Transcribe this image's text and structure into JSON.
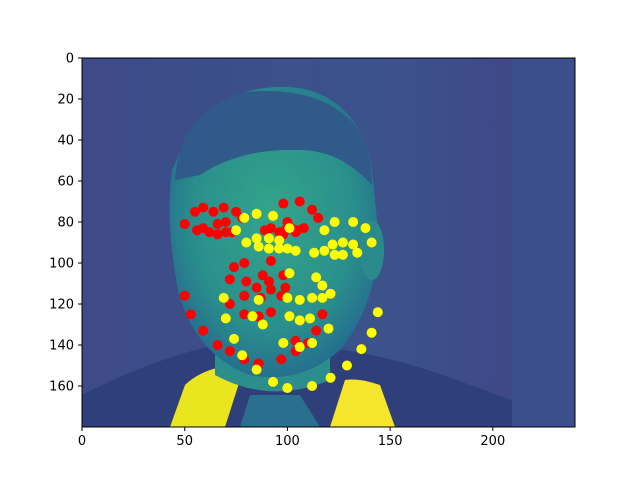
{
  "figure": {
    "background": "#ffffff",
    "image_description_color": "viridis",
    "wall_color": "#3b528b",
    "skin_color": "#2c9b8b",
    "shirt_color": "#f5e52b"
  },
  "chart_data": {
    "type": "scatter",
    "title": "",
    "xlabel": "",
    "ylabel": "",
    "xlim": [
      0,
      240
    ],
    "ylim": [
      180,
      0
    ],
    "x_ticks": [
      0,
      50,
      100,
      150,
      200
    ],
    "y_ticks": [
      0,
      20,
      40,
      60,
      80,
      100,
      120,
      140,
      160
    ],
    "x_tick_labels": [
      "0",
      "50",
      "100",
      "150",
      "200"
    ],
    "y_tick_labels": [
      "0",
      "20",
      "40",
      "60",
      "80",
      "100",
      "120",
      "140",
      "160"
    ],
    "grid": false,
    "series": [
      {
        "color": "#ff0000",
        "points": [
          [
            50,
            81
          ],
          [
            55,
            75
          ],
          [
            59,
            73
          ],
          [
            64,
            75
          ],
          [
            69,
            73
          ],
          [
            75,
            75
          ],
          [
            78,
            78
          ],
          [
            56,
            84
          ],
          [
            59,
            83
          ],
          [
            62,
            85
          ],
          [
            66,
            86
          ],
          [
            70,
            85
          ],
          [
            73,
            85
          ],
          [
            66,
            81
          ],
          [
            70,
            80
          ],
          [
            89,
            84
          ],
          [
            92,
            83
          ],
          [
            96,
            85
          ],
          [
            99,
            84
          ],
          [
            102,
            83
          ],
          [
            105,
            84
          ],
          [
            108,
            83
          ],
          [
            100,
            80
          ],
          [
            98,
            71
          ],
          [
            106,
            70
          ],
          [
            112,
            74
          ],
          [
            115,
            78
          ],
          [
            98,
            86
          ],
          [
            104,
            85
          ],
          [
            92,
            99
          ],
          [
            79,
            100
          ],
          [
            74,
            102
          ],
          [
            88,
            106
          ],
          [
            98,
            106
          ],
          [
            72,
            108
          ],
          [
            80,
            109
          ],
          [
            91,
            109
          ],
          [
            85,
            112
          ],
          [
            92,
            113
          ],
          [
            99,
            112
          ],
          [
            79,
            116
          ],
          [
            87,
            117
          ],
          [
            97,
            116
          ],
          [
            72,
            120
          ],
          [
            50,
            116
          ],
          [
            53,
            125
          ],
          [
            59,
            133
          ],
          [
            66,
            140
          ],
          [
            72,
            143
          ],
          [
            79,
            147
          ],
          [
            86,
            149
          ],
          [
            79,
            125
          ],
          [
            86,
            126
          ],
          [
            92,
            124
          ],
          [
            104,
            138
          ],
          [
            104,
            143
          ],
          [
            97,
            147
          ],
          [
            110,
            139
          ],
          [
            114,
            133
          ],
          [
            117,
            125
          ],
          [
            121,
            115
          ]
        ]
      },
      {
        "color": "#ffff00",
        "points": [
          [
            79,
            78
          ],
          [
            85,
            76
          ],
          [
            93,
            77
          ],
          [
            101,
            83
          ],
          [
            118,
            84
          ],
          [
            123,
            80
          ],
          [
            132,
            80
          ],
          [
            138,
            83
          ],
          [
            141,
            90
          ],
          [
            75,
            84
          ],
          [
            80,
            90
          ],
          [
            86,
            92
          ],
          [
            91,
            93
          ],
          [
            96,
            93
          ],
          [
            100,
            93
          ],
          [
            104,
            94
          ],
          [
            85,
            88
          ],
          [
            91,
            88
          ],
          [
            96,
            89
          ],
          [
            113,
            95
          ],
          [
            118,
            94
          ],
          [
            122,
            91
          ],
          [
            127,
            90
          ],
          [
            132,
            91
          ],
          [
            134,
            95
          ],
          [
            127,
            96
          ],
          [
            123,
            96
          ],
          [
            101,
            105
          ],
          [
            114,
            107
          ],
          [
            117,
            111
          ],
          [
            121,
            115
          ],
          [
            69,
            117
          ],
          [
            86,
            118
          ],
          [
            100,
            117
          ],
          [
            106,
            118
          ],
          [
            112,
            117
          ],
          [
            117,
            117
          ],
          [
            70,
            127
          ],
          [
            83,
            126
          ],
          [
            88,
            130
          ],
          [
            101,
            126
          ],
          [
            106,
            128
          ],
          [
            111,
            127
          ],
          [
            120,
            132
          ],
          [
            141,
            134
          ],
          [
            144,
            124
          ],
          [
            136,
            142
          ],
          [
            129,
            150
          ],
          [
            121,
            156
          ],
          [
            74,
            137
          ],
          [
            78,
            145
          ],
          [
            85,
            152
          ],
          [
            93,
            158
          ],
          [
            100,
            161
          ],
          [
            112,
            160
          ],
          [
            98,
            139
          ],
          [
            106,
            141
          ],
          [
            112,
            139
          ]
        ]
      }
    ]
  }
}
